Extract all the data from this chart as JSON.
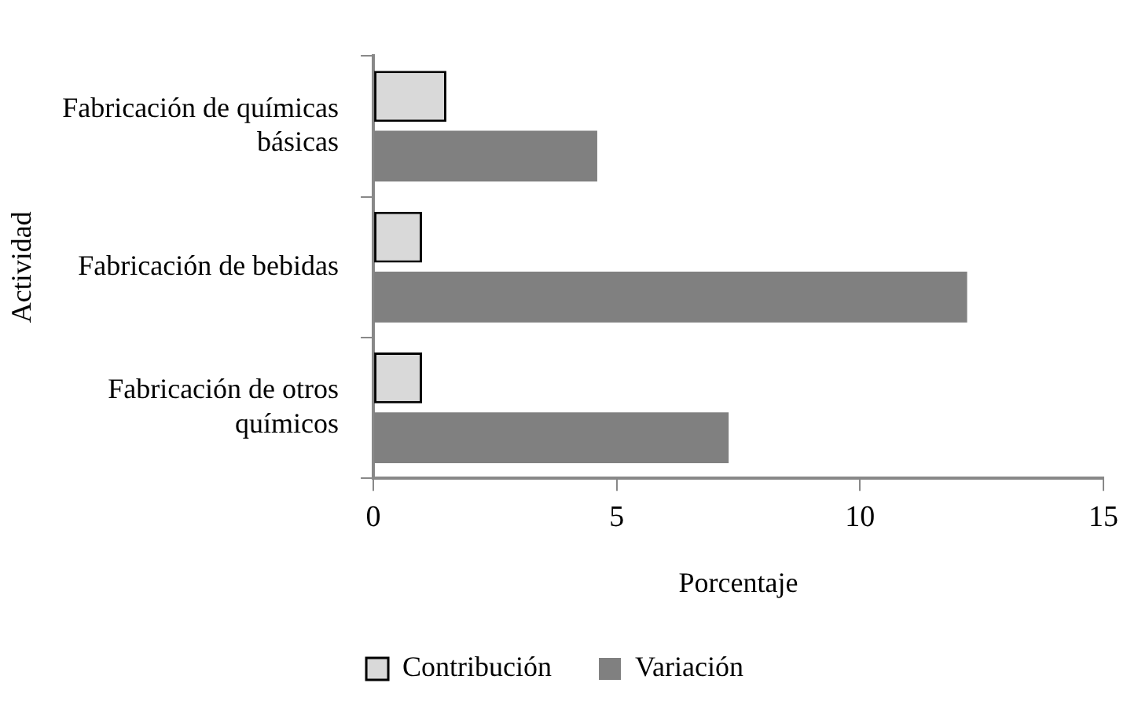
{
  "chart_data": {
    "type": "bar",
    "orientation": "horizontal",
    "xlabel": "Porcentaje",
    "ylabel": "Actividad",
    "categories": [
      "Fabricación de químicas básicas",
      "Fabricación de bebidas",
      "Fabricación de otros químicos"
    ],
    "series": [
      {
        "name": "Contribución",
        "color": "#d9d9d9",
        "values": [
          1.5,
          1.0,
          1.0
        ]
      },
      {
        "name": "Variación",
        "color": "#808080",
        "values": [
          4.6,
          12.2,
          7.3
        ]
      }
    ],
    "xlim": [
      0,
      15
    ],
    "xticks": [
      0,
      5,
      10,
      15
    ],
    "legend": "bottom"
  }
}
